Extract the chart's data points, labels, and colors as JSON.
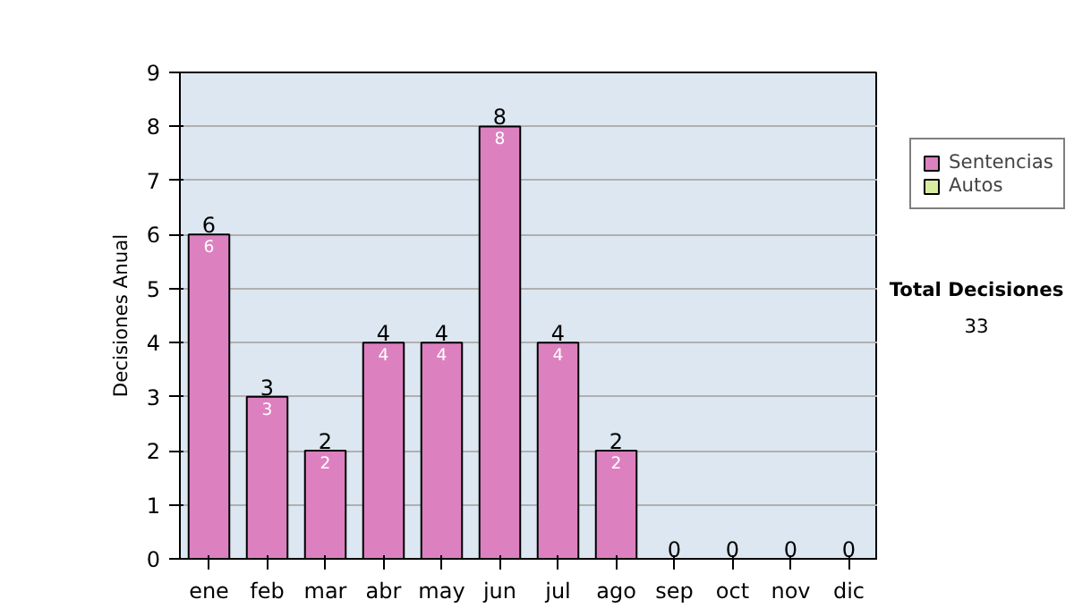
{
  "chart_data": {
    "type": "bar",
    "stacked": true,
    "ylabel": "Decisiones Anual",
    "categories": [
      "ene",
      "feb",
      "mar",
      "abr",
      "may",
      "jun",
      "jul",
      "ago",
      "sep",
      "oct",
      "nov",
      "dic"
    ],
    "series": [
      {
        "name": "Sentencias",
        "color": "#dd80c0",
        "values": [
          6,
          3,
          2,
          4,
          4,
          8,
          4,
          2,
          0,
          0,
          0,
          0
        ],
        "value_labels": [
          "6",
          "3",
          "2",
          "4",
          "4",
          "8",
          "4",
          "2",
          null,
          null,
          null,
          null
        ]
      },
      {
        "name": "Autos",
        "color": "#d8eca0",
        "values": [
          0,
          0,
          0,
          0,
          0,
          0,
          0,
          0,
          0,
          0,
          0,
          0
        ]
      }
    ],
    "totals": [
      "6",
      "3",
      "2",
      "4",
      "4",
      "8",
      "4",
      "2",
      "0",
      "0",
      "0",
      "0"
    ],
    "ylim": [
      0,
      9
    ],
    "yticks": [
      0,
      1,
      2,
      3,
      4,
      5,
      6,
      7,
      8,
      9
    ],
    "grid": "y",
    "legend": "right",
    "annotations": [
      "Total Decisiones",
      "33"
    ]
  }
}
